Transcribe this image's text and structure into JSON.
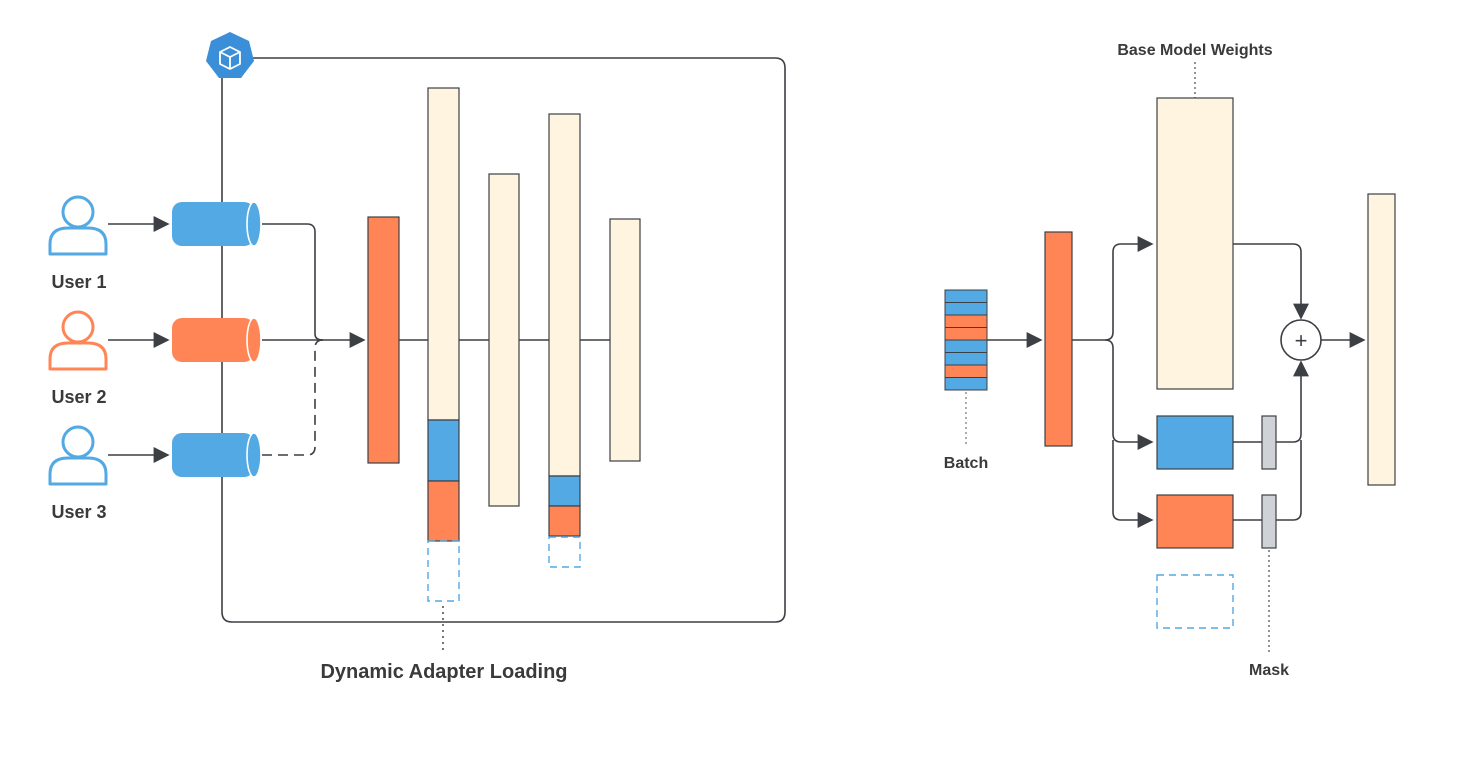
{
  "colors": {
    "blue": "#53a9e3",
    "orange": "#ff8557",
    "cream": "#fff4df",
    "gray": "#cfd3d7",
    "line": "#3c3f44",
    "hub": "#3b8fd9"
  },
  "left": {
    "users": [
      {
        "label": "User 1",
        "color": "blue"
      },
      {
        "label": "User 2",
        "color": "orange"
      },
      {
        "label": "User 3",
        "color": "blue"
      }
    ],
    "hub_icon": "cube-icon",
    "caption": "Dynamic Adapter Loading"
  },
  "right": {
    "base_label": "Base Model Weights",
    "batch_label": "Batch",
    "mask_label": "Mask",
    "adder_symbol": "+",
    "batch_rows": [
      "blue",
      "blue",
      "orange",
      "orange",
      "blue",
      "blue",
      "orange",
      "blue"
    ]
  }
}
